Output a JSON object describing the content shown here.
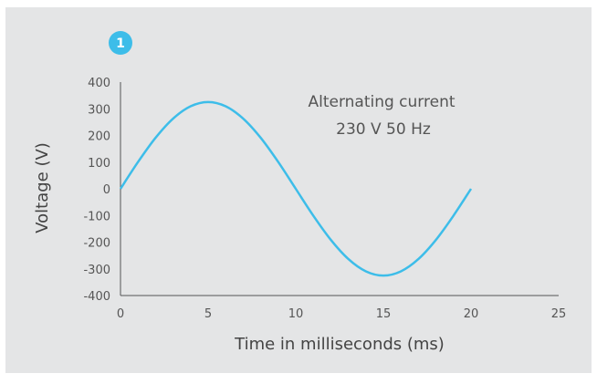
{
  "colors": {
    "panel_bg": "#e4e5e6",
    "line": "#3dbde9",
    "axis": "#555555",
    "badge": "#3dbde9",
    "badge_text": "#ffffff"
  },
  "badge": {
    "label": "1"
  },
  "chart_data": {
    "type": "line",
    "title": "",
    "xlabel": "Time in milliseconds (ms)",
    "ylabel": "Voltage (V)",
    "xlim": [
      0,
      25
    ],
    "ylim": [
      -400,
      400
    ],
    "xticks": [
      0,
      5,
      10,
      15,
      20,
      25
    ],
    "yticks": [
      400,
      300,
      200,
      100,
      0,
      -100,
      -200,
      -300,
      -400
    ],
    "grid": false,
    "annotation": [
      "Alternating current",
      "230 V 50 Hz"
    ],
    "series": [
      {
        "x": [
          0,
          1,
          2,
          3,
          4,
          5,
          6,
          7,
          8,
          9,
          10,
          11,
          12,
          13,
          14,
          15,
          16,
          17,
          18,
          19,
          20
        ],
        "values": [
          0,
          100.5,
          191.2,
          263.1,
          309.3,
          325.3,
          309.3,
          263.1,
          191.2,
          100.5,
          0,
          -100.5,
          -191.2,
          -263.1,
          -309.3,
          -325.3,
          -309.3,
          -263.1,
          -191.2,
          -100.5,
          0
        ]
      }
    ]
  }
}
